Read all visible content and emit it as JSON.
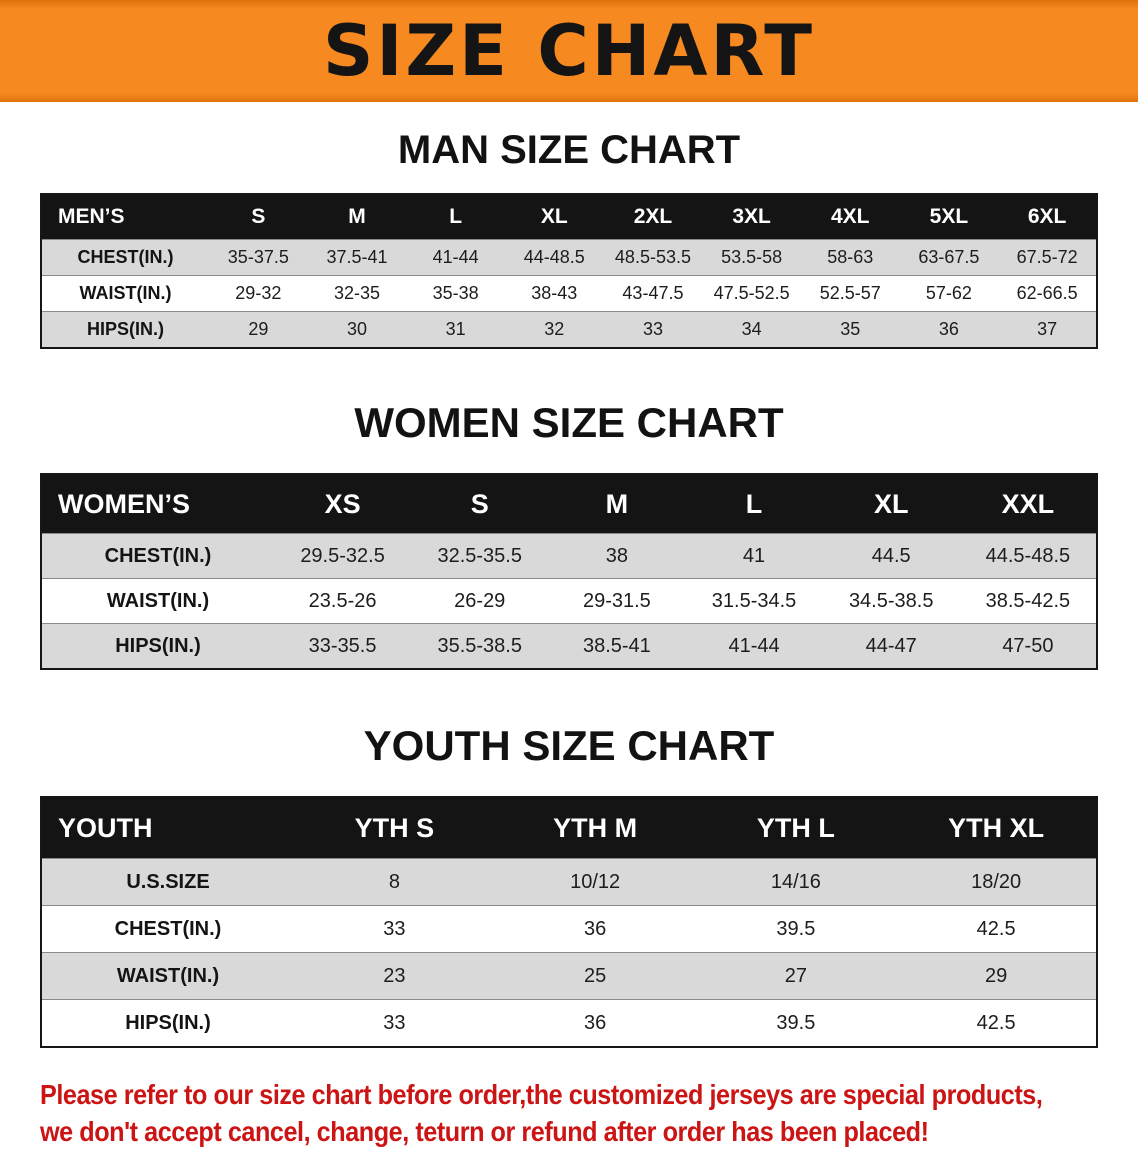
{
  "banner": {
    "title": "SIZE CHART",
    "bg_color": "#f6891f",
    "text_color": "#141414"
  },
  "sections": [
    {
      "heading": "MAN SIZE CHART",
      "table": {
        "header": [
          "MEN’S",
          "S",
          "M",
          "L",
          "XL",
          "2XL",
          "3XL",
          "4XL",
          "5XL",
          "6XL"
        ],
        "rows": [
          {
            "label": "CHEST(IN.)",
            "values": [
              "35-37.5",
              "37.5-41",
              "41-44",
              "44-48.5",
              "48.5-53.5",
              "53.5-58",
              "58-63",
              "63-67.5",
              "67.5-72"
            ]
          },
          {
            "label": "WAIST(IN.)",
            "values": [
              "29-32",
              "32-35",
              "35-38",
              "38-43",
              "43-47.5",
              "47.5-52.5",
              "52.5-57",
              "57-62",
              "62-66.5"
            ]
          },
          {
            "label": "HIPS(IN.)",
            "values": [
              "29",
              "30",
              "31",
              "32",
              "33",
              "34",
              "35",
              "36",
              "37"
            ]
          }
        ]
      }
    },
    {
      "heading": "WOMEN SIZE CHART",
      "table": {
        "header": [
          "WOMEN’S",
          "XS",
          "S",
          "M",
          "L",
          "XL",
          "XXL"
        ],
        "rows": [
          {
            "label": "CHEST(IN.)",
            "values": [
              "29.5-32.5",
              "32.5-35.5",
              "38",
              "41",
              "44.5",
              "44.5-48.5"
            ]
          },
          {
            "label": "WAIST(IN.)",
            "values": [
              "23.5-26",
              "26-29",
              "29-31.5",
              "31.5-34.5",
              "34.5-38.5",
              "38.5-42.5"
            ]
          },
          {
            "label": "HIPS(IN.)",
            "values": [
              "33-35.5",
              "35.5-38.5",
              "38.5-41",
              "41-44",
              "44-47",
              "47-50"
            ]
          }
        ]
      }
    },
    {
      "heading": "YOUTH SIZE CHART",
      "table": {
        "header": [
          "YOUTH",
          "YTH S",
          "YTH M",
          "YTH L",
          "YTH XL"
        ],
        "rows": [
          {
            "label": "U.S.SIZE",
            "values": [
              "8",
              "10/12",
              "14/16",
              "18/20"
            ]
          },
          {
            "label": "CHEST(IN.)",
            "values": [
              "33",
              "36",
              "39.5",
              "42.5"
            ]
          },
          {
            "label": "WAIST(IN.)",
            "values": [
              "23",
              "25",
              "27",
              "29"
            ]
          },
          {
            "label": "HIPS(IN.)",
            "values": [
              "33",
              "36",
              "39.5",
              "42.5"
            ]
          }
        ]
      }
    }
  ],
  "disclaimer": {
    "lines": [
      "Please refer to our size chart before order,the customized jerseys are special products,",
      "we don't accept cancel, change, teturn or refund after order has been placed!"
    ],
    "text_color": "#cc1414"
  },
  "colors": {
    "table_header_bg": "#141414",
    "row_stripe": "#d9d9d9",
    "table_border": "#161616",
    "banner_orange": "#f6891f"
  }
}
